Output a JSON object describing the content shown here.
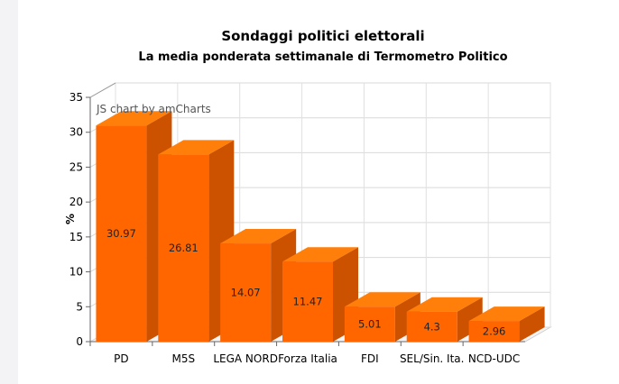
{
  "chart_data": {
    "type": "bar",
    "title": "Sondaggi politici elettorali",
    "subtitle": "La media ponderata settimanale di Termometro Politico",
    "ylabel": "%",
    "xlabel": "",
    "ylim": [
      0,
      35
    ],
    "yticks": [
      0,
      5,
      10,
      15,
      20,
      25,
      30,
      35
    ],
    "categories": [
      "PD",
      "M5S",
      "LEGA NORD",
      "Forza Italia",
      "FDI",
      "SEL/Sin. Ita.",
      "NCD-UDC"
    ],
    "values": [
      30.97,
      26.81,
      14.07,
      11.47,
      5.01,
      4.3,
      2.96
    ],
    "value_labels": [
      "30.97",
      "26.81",
      "14.07",
      "11.47",
      "5.01",
      "4.3",
      "2.96"
    ],
    "bar_color": "#ff6600",
    "bar_top_color": "#ff7f0a",
    "bar_side_color": "#cc5200",
    "grid": true,
    "legend": "none",
    "credit": "JS chart by amCharts"
  }
}
